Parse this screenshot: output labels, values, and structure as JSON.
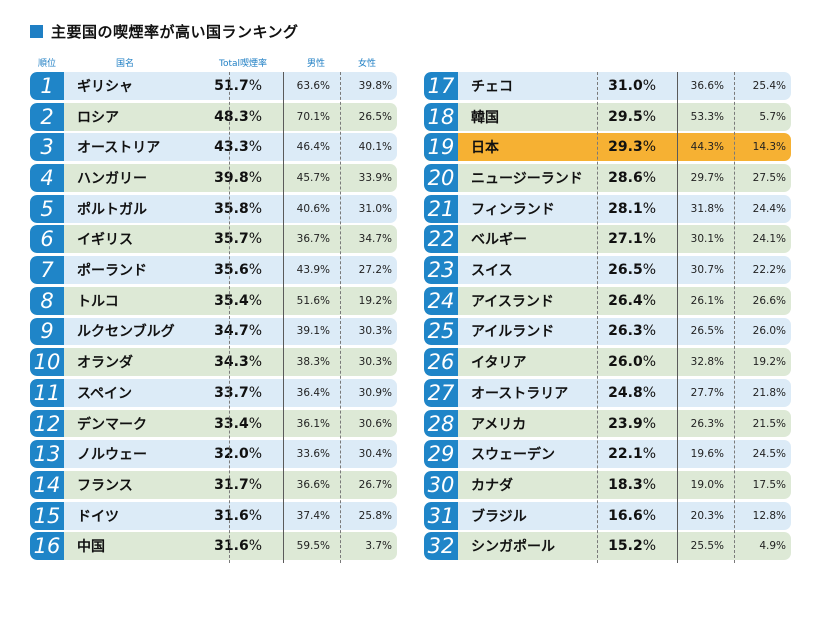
{
  "title": "主要国の喫煙率が高い国ランキング",
  "headers": {
    "rank": "順位",
    "country": "国名",
    "total": "Total喫煙率",
    "male": "男性",
    "female": "女性"
  },
  "colors": {
    "rank_bg": "#1f85c8",
    "row_blue": "#dcebf7",
    "row_green": "#dde9d6",
    "highlight": "#f6b133"
  },
  "chart_data": {
    "type": "table",
    "title": "主要国の喫煙率が高い国ランキング",
    "columns": [
      "順位",
      "国名",
      "Total喫煙率",
      "男性",
      "女性"
    ],
    "highlight_rank": 19,
    "rows": [
      {
        "rank": "1",
        "country": "ギリシャ",
        "total": "51.7",
        "male": "63.6%",
        "female": "39.8%"
      },
      {
        "rank": "2",
        "country": "ロシア",
        "total": "48.3",
        "male": "70.1%",
        "female": "26.5%"
      },
      {
        "rank": "3",
        "country": "オーストリア",
        "total": "43.3",
        "male": "46.4%",
        "female": "40.1%"
      },
      {
        "rank": "4",
        "country": "ハンガリー",
        "total": "39.8",
        "male": "45.7%",
        "female": "33.9%"
      },
      {
        "rank": "5",
        "country": "ポルトガル",
        "total": "35.8",
        "male": "40.6%",
        "female": "31.0%"
      },
      {
        "rank": "6",
        "country": "イギリス",
        "total": "35.7",
        "male": "36.7%",
        "female": "34.7%"
      },
      {
        "rank": "7",
        "country": "ポーランド",
        "total": "35.6",
        "male": "43.9%",
        "female": "27.2%"
      },
      {
        "rank": "8",
        "country": "トルコ",
        "total": "35.4",
        "male": "51.6%",
        "female": "19.2%"
      },
      {
        "rank": "9",
        "country": "ルクセンブルグ",
        "total": "34.7",
        "male": "39.1%",
        "female": "30.3%"
      },
      {
        "rank": "10",
        "country": "オランダ",
        "total": "34.3",
        "male": "38.3%",
        "female": "30.3%"
      },
      {
        "rank": "11",
        "country": "スペイン",
        "total": "33.7",
        "male": "36.4%",
        "female": "30.9%"
      },
      {
        "rank": "12",
        "country": "デンマーク",
        "total": "33.4",
        "male": "36.1%",
        "female": "30.6%"
      },
      {
        "rank": "13",
        "country": "ノルウェー",
        "total": "32.0",
        "male": "33.6%",
        "female": "30.4%"
      },
      {
        "rank": "14",
        "country": "フランス",
        "total": "31.7",
        "male": "36.6%",
        "female": "26.7%"
      },
      {
        "rank": "15",
        "country": "ドイツ",
        "total": "31.6",
        "male": "37.4%",
        "female": "25.8%"
      },
      {
        "rank": "16",
        "country": "中国",
        "total": "31.6",
        "male": "59.5%",
        "female": "3.7%"
      },
      {
        "rank": "17",
        "country": "チェコ",
        "total": "31.0",
        "male": "36.6%",
        "female": "25.4%"
      },
      {
        "rank": "18",
        "country": "韓国",
        "total": "29.5",
        "male": "53.3%",
        "female": "5.7%"
      },
      {
        "rank": "19",
        "country": "日本",
        "total": "29.3",
        "male": "44.3%",
        "female": "14.3%"
      },
      {
        "rank": "20",
        "country": "ニュージーランド",
        "total": "28.6",
        "male": "29.7%",
        "female": "27.5%"
      },
      {
        "rank": "21",
        "country": "フィンランド",
        "total": "28.1",
        "male": "31.8%",
        "female": "24.4%"
      },
      {
        "rank": "22",
        "country": "ベルギー",
        "total": "27.1",
        "male": "30.1%",
        "female": "24.1%"
      },
      {
        "rank": "23",
        "country": "スイス",
        "total": "26.5",
        "male": "30.7%",
        "female": "22.2%"
      },
      {
        "rank": "24",
        "country": "アイスランド",
        "total": "26.4",
        "male": "26.1%",
        "female": "26.6%"
      },
      {
        "rank": "25",
        "country": "アイルランド",
        "total": "26.3",
        "male": "26.5%",
        "female": "26.0%"
      },
      {
        "rank": "26",
        "country": "イタリア",
        "total": "26.0",
        "male": "32.8%",
        "female": "19.2%"
      },
      {
        "rank": "27",
        "country": "オーストラリア",
        "total": "24.8",
        "male": "27.7%",
        "female": "21.8%"
      },
      {
        "rank": "28",
        "country": "アメリカ",
        "total": "23.9",
        "male": "26.3%",
        "female": "21.5%"
      },
      {
        "rank": "29",
        "country": "スウェーデン",
        "total": "22.1",
        "male": "19.6%",
        "female": "24.5%"
      },
      {
        "rank": "30",
        "country": "カナダ",
        "total": "18.3",
        "male": "19.0%",
        "female": "17.5%"
      },
      {
        "rank": "31",
        "country": "ブラジル",
        "total": "16.6",
        "male": "20.3%",
        "female": "12.8%"
      },
      {
        "rank": "32",
        "country": "シンガポール",
        "total": "15.2",
        "male": "25.5%",
        "female": "4.9%"
      }
    ]
  }
}
